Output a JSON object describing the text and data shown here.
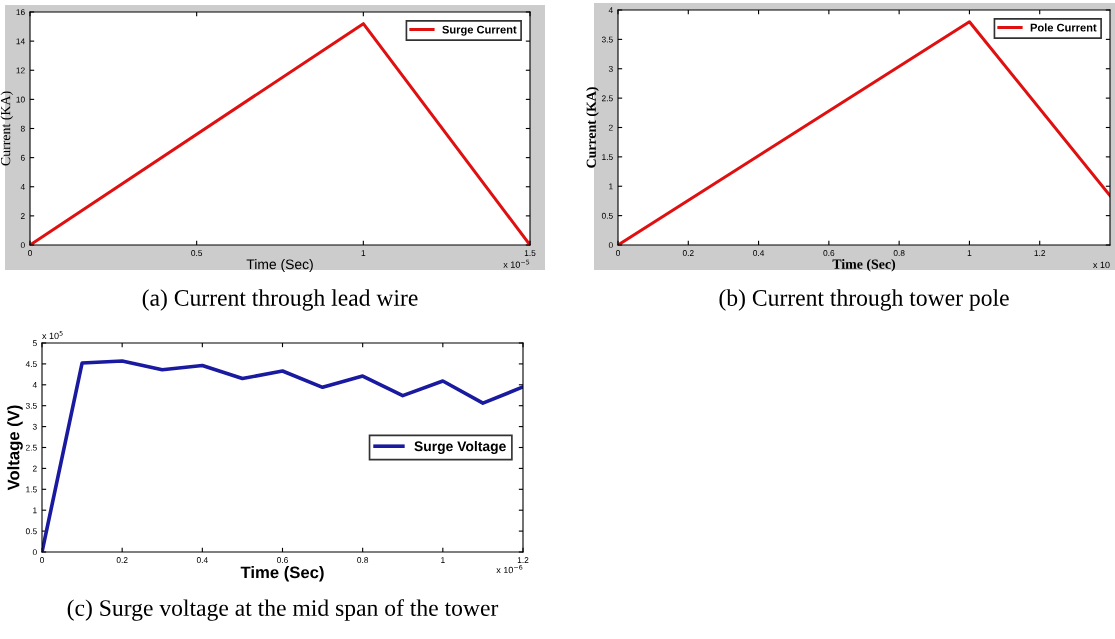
{
  "chart_data": [
    {
      "type": "line",
      "title": "(a) Current through lead wire",
      "xlabel": "Time (Sec)",
      "ylabel": "Current (KA)",
      "x": [
        0,
        1,
        1.5
      ],
      "series": [
        {
          "name": "Surge Current",
          "color": "#e01010",
          "values": [
            0,
            15.2,
            0
          ]
        }
      ],
      "xlim": [
        0,
        1.5
      ],
      "xticks": [
        0,
        0.5,
        1,
        1.5
      ],
      "ylim": [
        0,
        16
      ],
      "yticks": [
        0,
        2,
        4,
        6,
        8,
        10,
        12,
        14,
        16
      ],
      "annotations": [
        "x 10$^{−5}$"
      ],
      "legend": "top right",
      "grid": false
    },
    {
      "type": "line",
      "title": "(b) Current through tower pole",
      "xlabel": "Time (Sec)",
      "ylabel": "Current (KA)",
      "x": [
        0,
        1,
        1.4
      ],
      "series": [
        {
          "name": "Pole Current",
          "color": "#e01010",
          "values": [
            0,
            3.8,
            0.84
          ]
        }
      ],
      "xlim": [
        0,
        1.4
      ],
      "xticks": [
        0,
        0.2,
        0.4,
        0.6,
        0.8,
        1,
        1.2
      ],
      "ylim": [
        0,
        4
      ],
      "yticks": [
        0,
        0.5,
        1,
        1.5,
        2,
        2.5,
        3,
        3.5,
        4
      ],
      "annotations": [
        "x 10"
      ],
      "legend": "top right",
      "grid": false
    },
    {
      "type": "line",
      "title": "(c) Surge voltage at the mid span of the tower",
      "xlabel": "Time (Sec)",
      "ylabel": "Voltage (V)",
      "x": [
        0,
        0.1,
        0.2,
        0.3,
        0.4,
        0.5,
        0.6,
        0.7,
        0.8,
        0.9,
        1.0,
        1.1,
        1.2
      ],
      "series": [
        {
          "name": "Surge Voltage",
          "color": "#1a1aa0",
          "values": [
            0,
            4.52,
            4.57,
            4.36,
            4.46,
            4.15,
            4.33,
            3.94,
            4.21,
            3.74,
            4.09,
            3.56,
            3.95
          ]
        }
      ],
      "xlim": [
        0,
        1.2
      ],
      "xticks": [
        0,
        0.2,
        0.4,
        0.6,
        0.8,
        1,
        1.2
      ],
      "ylim": [
        0,
        5
      ],
      "yticks": [
        0,
        0.5,
        1,
        1.5,
        2,
        2.5,
        3,
        3.5,
        4,
        4.5,
        5
      ],
      "annotations": [
        "x 10$^{−6}$",
        "x 10$^{5}$"
      ],
      "legend": "right",
      "grid": false
    }
  ]
}
